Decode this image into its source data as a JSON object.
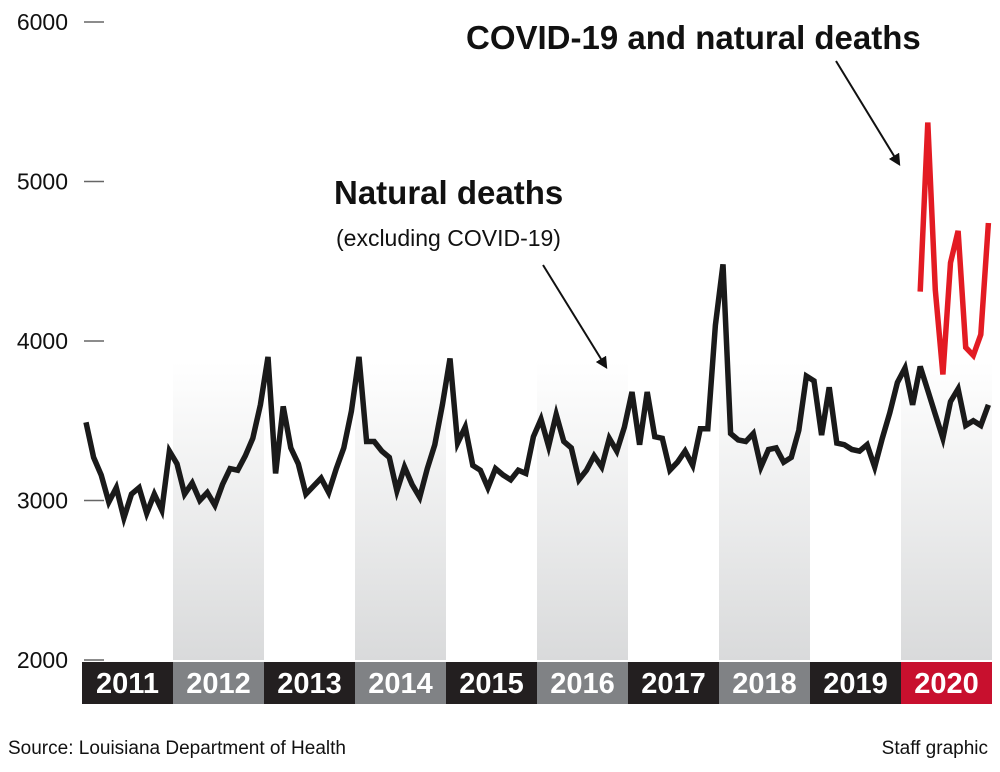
{
  "chart_data": {
    "type": "line",
    "title": "",
    "xlabel": "",
    "ylabel": "",
    "ylim": [
      2000,
      6000
    ],
    "yticks": [
      2000,
      3000,
      4000,
      5000,
      6000
    ],
    "years": [
      "2011",
      "2012",
      "2013",
      "2014",
      "2015",
      "2016",
      "2017",
      "2018",
      "2019",
      "2020"
    ],
    "highlight_year": "2020",
    "colors": {
      "natural": "#1a1a1a",
      "covid": "#e31b23",
      "year_dark": "#231f20",
      "year_gray": "#808285",
      "year_highlight": "#c8102e",
      "band": "#e6e7e8"
    },
    "series": [
      {
        "name": "Natural deaths",
        "start": "2011-01",
        "values": [
          3490,
          3270,
          3160,
          2990,
          3080,
          2890,
          3040,
          3080,
          2920,
          3040,
          2940,
          3310,
          3230,
          3040,
          3110,
          3000,
          3050,
          2970,
          3100,
          3200,
          3190,
          3280,
          3390,
          3600,
          3900,
          3170,
          3590,
          3330,
          3230,
          3040,
          3090,
          3140,
          3050,
          3200,
          3330,
          3560,
          3900,
          3370,
          3370,
          3310,
          3270,
          3060,
          3210,
          3100,
          3020,
          3200,
          3350,
          3600,
          3890,
          3360,
          3460,
          3220,
          3190,
          3080,
          3200,
          3160,
          3130,
          3190,
          3170,
          3400,
          3510,
          3340,
          3540,
          3370,
          3330,
          3130,
          3190,
          3280,
          3210,
          3390,
          3310,
          3460,
          3680,
          3350,
          3680,
          3400,
          3390,
          3190,
          3240,
          3310,
          3220,
          3450,
          3450,
          4100,
          4480,
          3420,
          3380,
          3370,
          3420,
          3210,
          3320,
          3330,
          3240,
          3270,
          3440,
          3780,
          3750,
          3410,
          3710,
          3360,
          3350,
          3320,
          3310,
          3350,
          3210,
          3390,
          3550,
          3740,
          3830,
          3600,
          3840,
          3690,
          3540,
          3390,
          3620,
          3700,
          3470,
          3500,
          3470,
          3600
        ]
      },
      {
        "name": "COVID-19 and natural deaths",
        "start": "2020-03",
        "values": [
          4310,
          5370,
          4320,
          3790,
          4490,
          4690,
          3960,
          3910,
          4040,
          4740
        ]
      }
    ],
    "annotations": [
      {
        "title": "COVID-19 and natural deaths",
        "subtitle": ""
      },
      {
        "title": "Natural deaths",
        "subtitle": "(excluding COVID-19)"
      }
    ]
  },
  "footer": {
    "source": "Source: Louisiana Department of Health",
    "credit": "Staff graphic"
  }
}
